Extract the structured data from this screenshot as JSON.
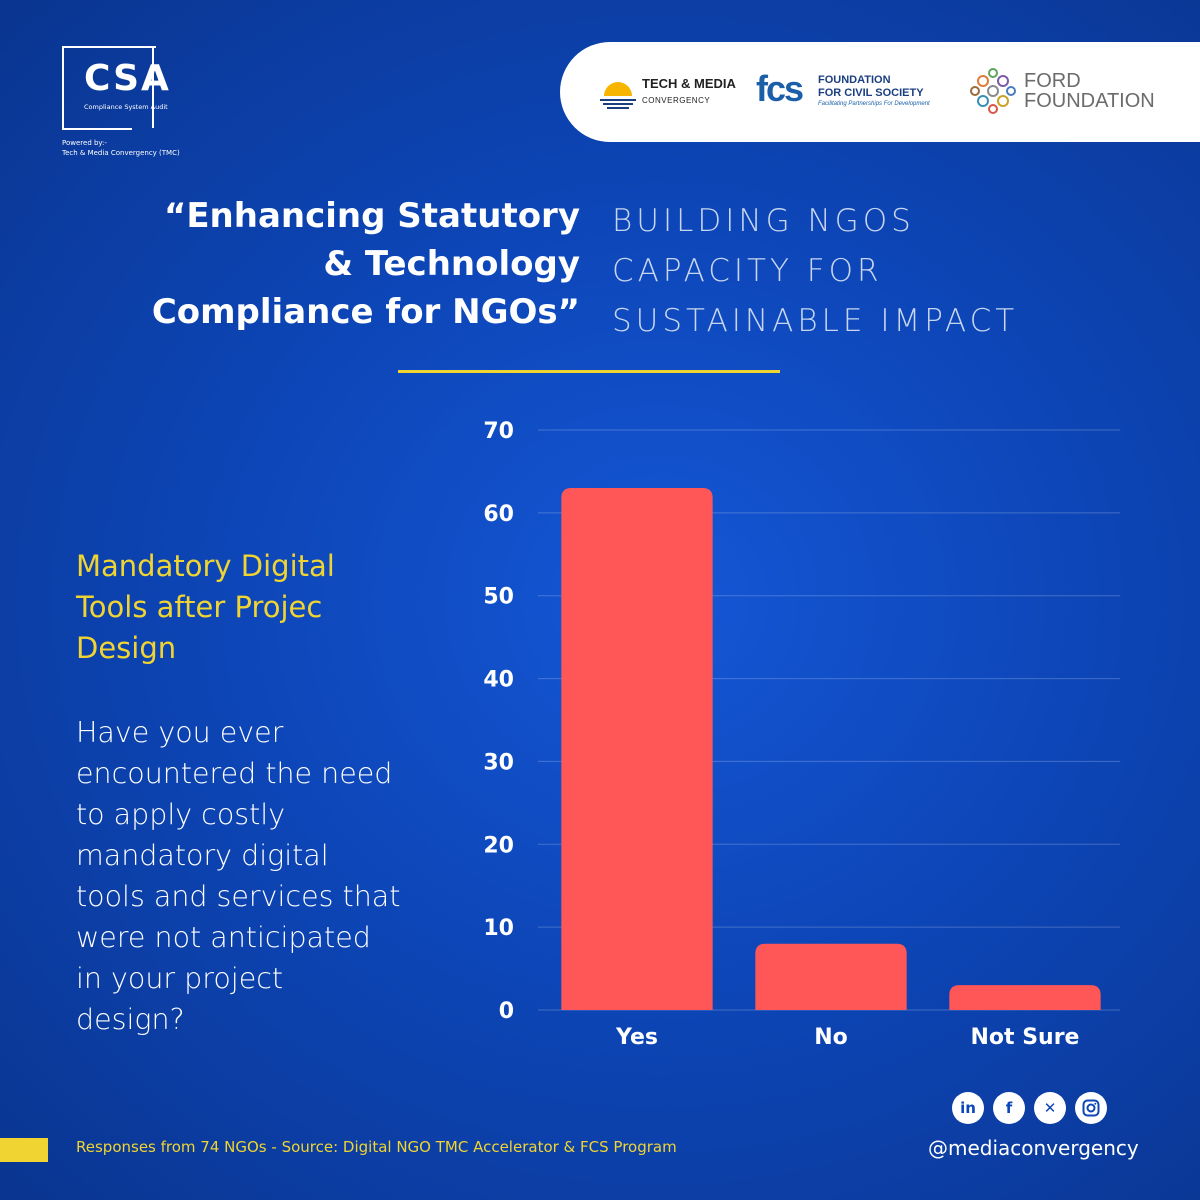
{
  "logo": {
    "title": "CSA",
    "subtitle": "Compliance System Audit",
    "powered_by": "Powered by:-",
    "powered_name": "Tech & Media Convergency (TMC)"
  },
  "sponsors": {
    "tmc_name": "TECH & MEDIA",
    "tmc_sub": "CONVERGENCY",
    "fcs_mark": "fcs",
    "fcs_line1": "FOUNDATION",
    "fcs_line2": "FOR CIVIL SOCIETY",
    "fcs_tagline": "Facilitating Partnerships For Development",
    "ford_line1": "FORD",
    "ford_line2": "FOUNDATION"
  },
  "headline": {
    "line1": "“Enhancing Statutory",
    "line2": "& Technology",
    "line3": "Compliance for NGOs”"
  },
  "subhead": {
    "line1": "BUILDING NGOS",
    "line2": "CAPACITY FOR",
    "line3": "SUSTAINABLE IMPACT"
  },
  "question": {
    "title_line1": "Mandatory Digital",
    "title_line2": "Tools after Projec",
    "title_line3": "Design",
    "text_line1": "Have you ever",
    "text_line2": "encountered the need",
    "text_line3": "to apply costly",
    "text_line4": "mandatory digital",
    "text_line5": "tools and services that",
    "text_line6": "were not anticipated",
    "text_line7": "in your project",
    "text_line8": "design?"
  },
  "chart_data": {
    "type": "bar",
    "categories": [
      "Yes",
      "No",
      "Not Sure"
    ],
    "values": [
      63,
      8,
      3
    ],
    "ylim": [
      0,
      70
    ],
    "yticks": [
      0,
      10,
      20,
      30,
      40,
      50,
      60,
      70
    ],
    "grid": true,
    "bar_color": "#ff5757",
    "title": "",
    "xlabel": "",
    "ylabel": ""
  },
  "footer": {
    "source": "Responses from 74 NGOs - Source: Digital NGO TMC Accelerator & FCS Program",
    "handle": "@mediaconvergency",
    "social": [
      "linkedin-icon",
      "facebook-icon",
      "x-icon",
      "instagram-icon"
    ]
  },
  "colors": {
    "background": "#0d46b8",
    "accent": "#f0d431",
    "bar": "#ff5757"
  }
}
